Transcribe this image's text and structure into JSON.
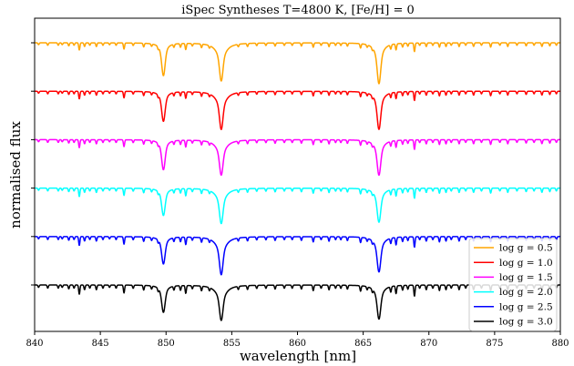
{
  "chart_data": {
    "type": "line",
    "title": "iSpec Syntheses T=4800 K, [Fe/H] = 0",
    "xlabel": "wavelength [nm]",
    "ylabel": "normalised flux",
    "xlim": [
      840,
      880
    ],
    "x_ticks": [
      840,
      845,
      850,
      855,
      860,
      865,
      870,
      875,
      880
    ],
    "y_tick_labels_shown": false,
    "grid": false,
    "legend_position": "lower-right",
    "absorption_lines": [
      {
        "center": 849.8,
        "depth_index": 1.0
      },
      {
        "center": 854.2,
        "depth_index": 1.0
      },
      {
        "center": 866.2,
        "depth_index": 1.0
      }
    ],
    "series": [
      {
        "name": "log g = 0.5",
        "color": "#ffa500",
        "offset": 5,
        "line_depths": [
          0.24,
          0.28,
          0.3
        ]
      },
      {
        "name": "log g = 1.0",
        "color": "#ff0000",
        "offset": 4,
        "line_depths": [
          0.22,
          0.28,
          0.28
        ]
      },
      {
        "name": "log g = 1.5",
        "color": "#ff00ff",
        "offset": 3,
        "line_depths": [
          0.22,
          0.26,
          0.26
        ]
      },
      {
        "name": "log g = 2.0",
        "color": "#00ffff",
        "offset": 2,
        "line_depths": [
          0.2,
          0.26,
          0.25
        ]
      },
      {
        "name": "log g = 2.5",
        "color": "#0000ff",
        "offset": 1,
        "line_depths": [
          0.2,
          0.28,
          0.26
        ]
      },
      {
        "name": "log g = 3.0",
        "color": "#000000",
        "offset": 0,
        "line_depths": [
          0.2,
          0.26,
          0.25
        ]
      }
    ]
  }
}
